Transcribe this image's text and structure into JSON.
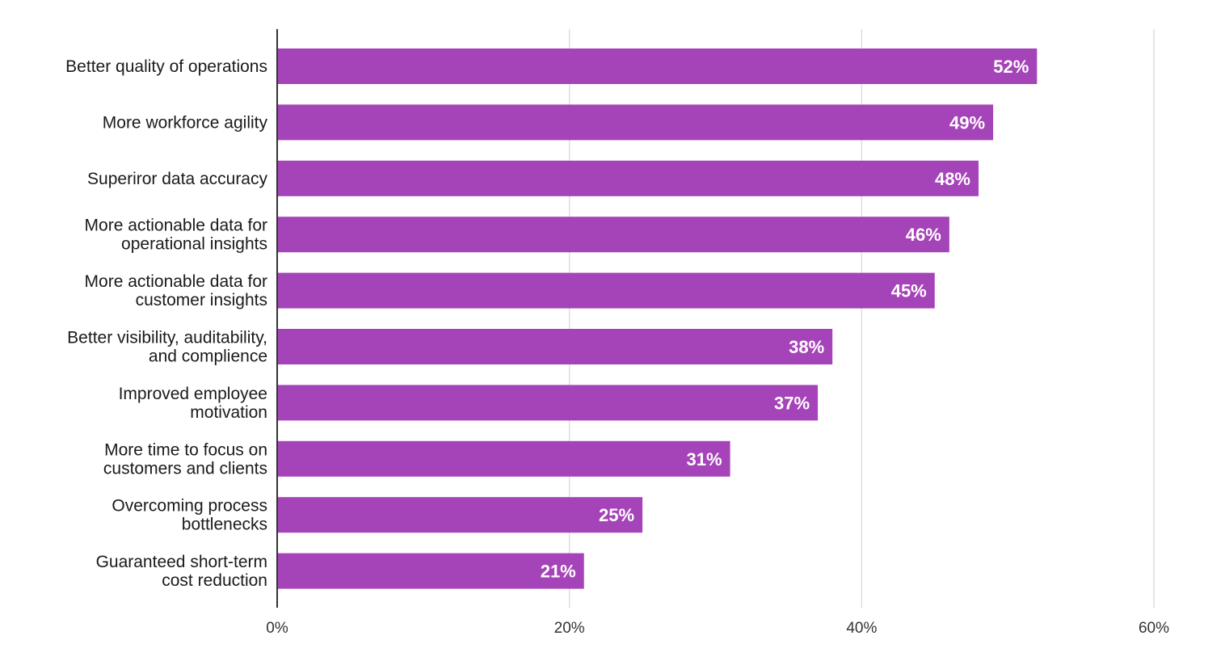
{
  "chart_data": {
    "type": "bar",
    "orientation": "horizontal",
    "title": "",
    "xlabel": "",
    "ylabel": "",
    "categories": [
      [
        "Better quality of operations"
      ],
      [
        "More workforce agility"
      ],
      [
        "Superiror data accuracy"
      ],
      [
        "More actionable data for",
        "operational insights"
      ],
      [
        "More actionable data for",
        "customer insights"
      ],
      [
        "Better visibility, auditability,",
        "and complience"
      ],
      [
        "Improved employee",
        "motivation"
      ],
      [
        "More time to focus on",
        "customers and clients"
      ],
      [
        "Overcoming process",
        "bottlenecks"
      ],
      [
        "Guaranteed short-term",
        "cost reduction"
      ]
    ],
    "values": [
      52,
      49,
      48,
      46,
      45,
      38,
      37,
      31,
      25,
      21
    ],
    "value_labels": [
      "52%",
      "49%",
      "48%",
      "46%",
      "45%",
      "38%",
      "37%",
      "31%",
      "25%",
      "21%"
    ],
    "xlim": [
      0,
      60
    ],
    "x_ticks": [
      0,
      20,
      40,
      60
    ],
    "x_tick_labels": [
      "0%",
      "20%",
      "40%",
      "60%"
    ],
    "grid": true,
    "legend": "none",
    "bar_color": "#a544b8",
    "grid_color": "#d9d9d9",
    "axis_color": "#333333"
  }
}
